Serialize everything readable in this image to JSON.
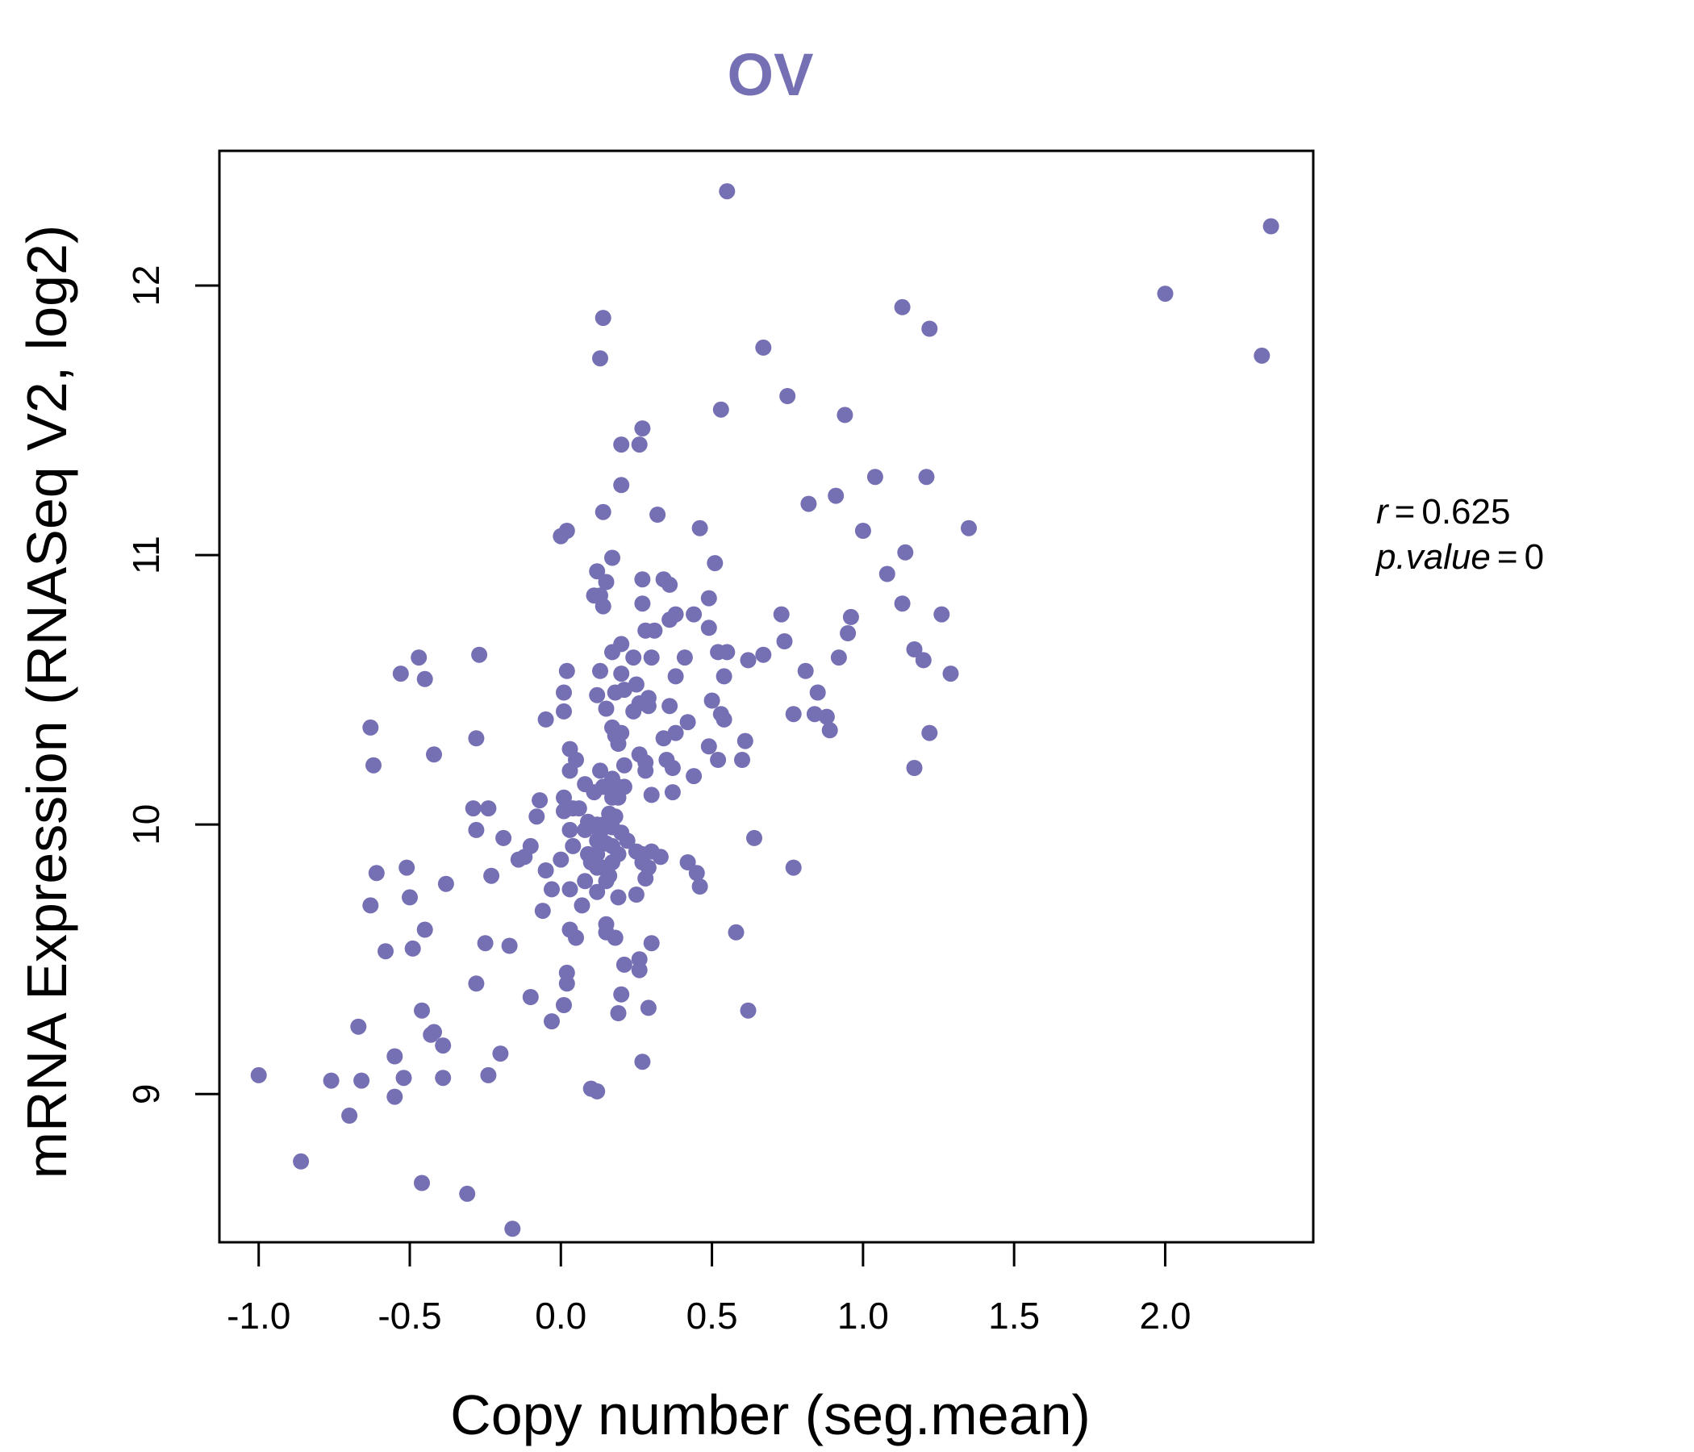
{
  "colors": {
    "point": "#7570b3",
    "title": "#7570b3",
    "axis": "#000000"
  },
  "chart_data": {
    "type": "scatter",
    "title": "OV",
    "xlabel": "Copy number (seg.mean)",
    "ylabel": "mRNA Expression (RNASeq V2, log2)",
    "xlim": [
      -1.13,
      2.49
    ],
    "ylim": [
      8.45,
      12.5
    ],
    "xticks": [
      -1.0,
      -0.5,
      0.0,
      0.5,
      1.0,
      1.5,
      2.0
    ],
    "xtick_labels": [
      "-1.0",
      "-0.5",
      "0.0",
      "0.5",
      "1.0",
      "1.5",
      "2.0"
    ],
    "yticks": [
      9,
      10,
      11,
      12
    ],
    "ytick_labels": [
      "9",
      "10",
      "11",
      "12"
    ],
    "grid": false,
    "stats": {
      "r_label": "r",
      "r_value": "0.625",
      "p_label": "p.value",
      "p_value": "0"
    },
    "points": [
      [
        0.55,
        12.35
      ],
      [
        2.35,
        12.22
      ],
      [
        2.0,
        11.97
      ],
      [
        2.32,
        11.74
      ],
      [
        1.13,
        11.92
      ],
      [
        1.22,
        11.84
      ],
      [
        0.14,
        11.88
      ],
      [
        0.13,
        11.73
      ],
      [
        0.67,
        11.77
      ],
      [
        0.75,
        11.59
      ],
      [
        0.53,
        11.54
      ],
      [
        0.94,
        11.52
      ],
      [
        0.27,
        11.47
      ],
      [
        0.2,
        11.41
      ],
      [
        0.26,
        11.41
      ],
      [
        0.2,
        11.26
      ],
      [
        1.04,
        11.29
      ],
      [
        1.21,
        11.29
      ],
      [
        0.91,
        11.22
      ],
      [
        0.82,
        11.19
      ],
      [
        0.14,
        11.16
      ],
      [
        0.32,
        11.15
      ],
      [
        0.46,
        11.1
      ],
      [
        1.0,
        11.09
      ],
      [
        1.35,
        11.1
      ],
      [
        0.02,
        11.09
      ],
      [
        0.0,
        11.07
      ],
      [
        1.14,
        11.01
      ],
      [
        0.17,
        10.99
      ],
      [
        0.51,
        10.97
      ],
      [
        0.12,
        10.94
      ],
      [
        1.08,
        10.93
      ],
      [
        0.27,
        10.91
      ],
      [
        0.34,
        10.91
      ],
      [
        0.15,
        10.9
      ],
      [
        0.36,
        10.89
      ],
      [
        0.11,
        10.85
      ],
      [
        0.13,
        10.85
      ],
      [
        0.49,
        10.84
      ],
      [
        0.14,
        10.81
      ],
      [
        0.27,
        10.82
      ],
      [
        1.13,
        10.82
      ],
      [
        0.38,
        10.78
      ],
      [
        0.44,
        10.78
      ],
      [
        0.73,
        10.78
      ],
      [
        1.26,
        10.78
      ],
      [
        0.96,
        10.77
      ],
      [
        0.36,
        10.76
      ],
      [
        0.49,
        10.73
      ],
      [
        0.28,
        10.72
      ],
      [
        0.31,
        10.72
      ],
      [
        0.95,
        10.71
      ],
      [
        0.74,
        10.68
      ],
      [
        0.2,
        10.67
      ],
      [
        0.17,
        10.64
      ],
      [
        0.52,
        10.64
      ],
      [
        0.55,
        10.64
      ],
      [
        1.17,
        10.65
      ],
      [
        0.67,
        10.63
      ],
      [
        0.24,
        10.62
      ],
      [
        0.3,
        10.62
      ],
      [
        0.41,
        10.62
      ],
      [
        0.62,
        10.61
      ],
      [
        0.92,
        10.62
      ],
      [
        1.2,
        10.61
      ],
      [
        -0.47,
        10.62
      ],
      [
        -0.27,
        10.63
      ],
      [
        0.02,
        10.57
      ],
      [
        0.13,
        10.57
      ],
      [
        0.2,
        10.56
      ],
      [
        0.81,
        10.57
      ],
      [
        1.29,
        10.56
      ],
      [
        -0.53,
        10.56
      ],
      [
        -0.45,
        10.54
      ],
      [
        0.38,
        10.55
      ],
      [
        0.54,
        10.55
      ],
      [
        0.25,
        10.52
      ],
      [
        0.21,
        10.5
      ],
      [
        0.18,
        10.49
      ],
      [
        0.01,
        10.49
      ],
      [
        0.12,
        10.48
      ],
      [
        0.85,
        10.49
      ],
      [
        0.29,
        10.47
      ],
      [
        0.5,
        10.46
      ],
      [
        0.26,
        10.45
      ],
      [
        0.29,
        10.44
      ],
      [
        0.36,
        10.44
      ],
      [
        0.15,
        10.43
      ],
      [
        0.24,
        10.42
      ],
      [
        0.01,
        10.42
      ],
      [
        0.53,
        10.41
      ],
      [
        0.77,
        10.41
      ],
      [
        0.84,
        10.41
      ],
      [
        0.88,
        10.4
      ],
      [
        0.54,
        10.39
      ],
      [
        -0.05,
        10.39
      ],
      [
        0.42,
        10.38
      ],
      [
        0.17,
        10.36
      ],
      [
        -0.63,
        10.36
      ],
      [
        0.2,
        10.34
      ],
      [
        0.38,
        10.34
      ],
      [
        0.89,
        10.35
      ],
      [
        1.22,
        10.34
      ],
      [
        0.18,
        10.33
      ],
      [
        0.34,
        10.32
      ],
      [
        -0.28,
        10.32
      ],
      [
        0.61,
        10.31
      ],
      [
        0.19,
        10.3
      ],
      [
        0.49,
        10.29
      ],
      [
        0.03,
        10.28
      ],
      [
        0.26,
        10.26
      ],
      [
        -0.42,
        10.26
      ],
      [
        0.05,
        10.24
      ],
      [
        0.35,
        10.24
      ],
      [
        0.6,
        10.24
      ],
      [
        0.28,
        10.23
      ],
      [
        0.52,
        10.24
      ],
      [
        0.21,
        10.22
      ],
      [
        -0.62,
        10.22
      ],
      [
        0.03,
        10.2
      ],
      [
        0.13,
        10.2
      ],
      [
        0.28,
        10.2
      ],
      [
        0.37,
        10.21
      ],
      [
        1.17,
        10.21
      ],
      [
        0.44,
        10.18
      ],
      [
        0.17,
        10.17
      ],
      [
        0.08,
        10.15
      ],
      [
        0.14,
        10.14
      ],
      [
        0.19,
        10.14
      ],
      [
        0.21,
        10.14
      ],
      [
        0.11,
        10.12
      ],
      [
        0.3,
        10.11
      ],
      [
        0.37,
        10.12
      ],
      [
        0.17,
        10.1
      ],
      [
        0.19,
        10.1
      ],
      [
        0.01,
        10.1
      ],
      [
        -0.07,
        10.09
      ],
      [
        -0.29,
        10.06
      ],
      [
        -0.24,
        10.06
      ],
      [
        0.04,
        10.06
      ],
      [
        0.06,
        10.06
      ],
      [
        0.01,
        10.05
      ],
      [
        0.16,
        10.04
      ],
      [
        0.18,
        10.03
      ],
      [
        -0.08,
        10.03
      ],
      [
        0.09,
        10.01
      ],
      [
        0.12,
        10.0
      ],
      [
        0.14,
        10.0
      ],
      [
        0.17,
        9.99
      ],
      [
        -0.28,
        9.98
      ],
      [
        0.03,
        9.98
      ],
      [
        0.08,
        9.98
      ],
      [
        0.13,
        9.97
      ],
      [
        0.2,
        9.97
      ],
      [
        0.64,
        9.95
      ],
      [
        -0.19,
        9.95
      ],
      [
        0.12,
        9.94
      ],
      [
        0.22,
        9.94
      ],
      [
        0.15,
        9.93
      ],
      [
        0.04,
        9.92
      ],
      [
        0.17,
        9.92
      ],
      [
        -0.1,
        9.92
      ],
      [
        0.25,
        9.9
      ],
      [
        0.27,
        9.89
      ],
      [
        0.3,
        9.9
      ],
      [
        0.09,
        9.89
      ],
      [
        0.12,
        9.89
      ],
      [
        0.19,
        9.89
      ],
      [
        0.33,
        9.88
      ],
      [
        -0.12,
        9.88
      ],
      [
        0.0,
        9.87
      ],
      [
        -0.14,
        9.87
      ],
      [
        0.1,
        9.86
      ],
      [
        0.17,
        9.86
      ],
      [
        0.27,
        9.86
      ],
      [
        0.42,
        9.86
      ],
      [
        0.77,
        9.84
      ],
      [
        -0.51,
        9.84
      ],
      [
        0.12,
        9.84
      ],
      [
        0.14,
        9.84
      ],
      [
        0.29,
        9.84
      ],
      [
        -0.05,
        9.83
      ],
      [
        -0.61,
        9.82
      ],
      [
        0.45,
        9.82
      ],
      [
        0.16,
        9.81
      ],
      [
        -0.23,
        9.81
      ],
      [
        0.28,
        9.8
      ],
      [
        0.08,
        9.79
      ],
      [
        0.15,
        9.79
      ],
      [
        -0.38,
        9.78
      ],
      [
        0.46,
        9.77
      ],
      [
        0.03,
        9.76
      ],
      [
        -0.03,
        9.76
      ],
      [
        0.12,
        9.75
      ],
      [
        0.25,
        9.74
      ],
      [
        0.19,
        9.73
      ],
      [
        -0.5,
        9.73
      ],
      [
        -0.06,
        9.68
      ],
      [
        0.07,
        9.7
      ],
      [
        -0.63,
        9.7
      ],
      [
        0.15,
        9.63
      ],
      [
        0.03,
        9.61
      ],
      [
        -0.45,
        9.61
      ],
      [
        0.15,
        9.6
      ],
      [
        0.58,
        9.6
      ],
      [
        0.05,
        9.58
      ],
      [
        0.18,
        9.58
      ],
      [
        -0.25,
        9.56
      ],
      [
        0.3,
        9.56
      ],
      [
        -0.17,
        9.55
      ],
      [
        -0.49,
        9.54
      ],
      [
        -0.58,
        9.53
      ],
      [
        0.26,
        9.5
      ],
      [
        0.21,
        9.48
      ],
      [
        0.26,
        9.46
      ],
      [
        0.02,
        9.45
      ],
      [
        0.02,
        9.41
      ],
      [
        -0.28,
        9.41
      ],
      [
        0.2,
        9.37
      ],
      [
        -0.1,
        9.36
      ],
      [
        0.01,
        9.33
      ],
      [
        0.29,
        9.32
      ],
      [
        0.62,
        9.31
      ],
      [
        -0.46,
        9.31
      ],
      [
        0.19,
        9.3
      ],
      [
        -0.03,
        9.27
      ],
      [
        -0.67,
        9.25
      ],
      [
        -0.42,
        9.23
      ],
      [
        -0.43,
        9.22
      ],
      [
        -0.39,
        9.18
      ],
      [
        -0.2,
        9.15
      ],
      [
        -0.55,
        9.14
      ],
      [
        0.27,
        9.12
      ],
      [
        -0.24,
        9.07
      ],
      [
        -1.0,
        9.07
      ],
      [
        -0.52,
        9.06
      ],
      [
        -0.39,
        9.06
      ],
      [
        -0.76,
        9.05
      ],
      [
        -0.66,
        9.05
      ],
      [
        0.1,
        9.02
      ],
      [
        0.12,
        9.01
      ],
      [
        -0.55,
        8.99
      ],
      [
        -0.7,
        8.92
      ],
      [
        -0.86,
        8.75
      ],
      [
        -0.46,
        8.67
      ],
      [
        -0.31,
        8.63
      ],
      [
        -0.16,
        8.5
      ]
    ]
  }
}
